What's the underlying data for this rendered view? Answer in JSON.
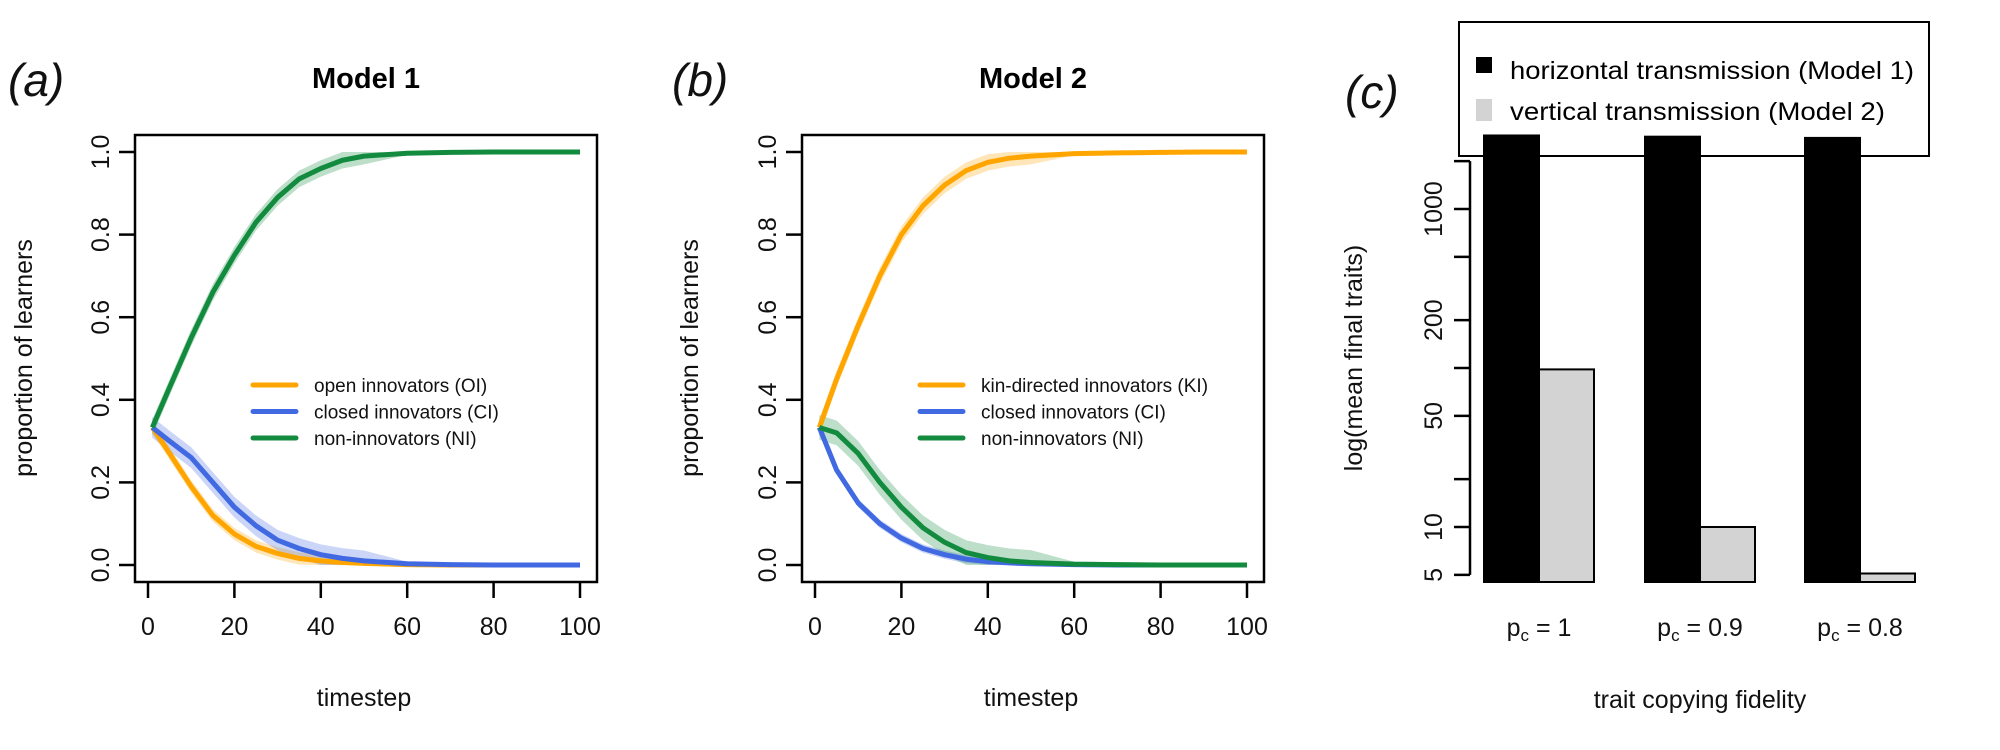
{
  "chart_data": [
    {
      "type": "line",
      "panel_tag": "(a)",
      "title": "Model 1",
      "xlabel": "timestep",
      "ylabel": "proportion of learners",
      "xlim": [
        0,
        100
      ],
      "ylim": [
        0,
        1
      ],
      "xticks": [
        0,
        20,
        40,
        60,
        80,
        100
      ],
      "yticks": [
        "0.0",
        "0.2",
        "0.4",
        "0.6",
        "0.8",
        "1.0"
      ],
      "legend_position": "center-right",
      "x": [
        1,
        5,
        10,
        15,
        20,
        25,
        30,
        35,
        40,
        45,
        50,
        60,
        70,
        80,
        90,
        100
      ],
      "series": [
        {
          "name": "open innovators (OI)",
          "color": "#FFA500",
          "band": 0.015,
          "values": [
            0.333,
            0.27,
            0.19,
            0.12,
            0.075,
            0.045,
            0.028,
            0.016,
            0.01,
            0.006,
            0.004,
            0.001,
            0.0,
            0.0,
            0.0,
            0.0
          ]
        },
        {
          "name": "closed innovators (CI)",
          "color": "#4169E1",
          "band": 0.025,
          "values": [
            0.333,
            0.3,
            0.26,
            0.2,
            0.14,
            0.095,
            0.06,
            0.04,
            0.025,
            0.016,
            0.01,
            0.003,
            0.001,
            0.0,
            0.0,
            0.0
          ]
        },
        {
          "name": "non-innovators (NI)",
          "color": "#138B3F",
          "band": 0.02,
          "values": [
            0.333,
            0.43,
            0.55,
            0.66,
            0.75,
            0.83,
            0.89,
            0.935,
            0.96,
            0.98,
            0.99,
            0.997,
            0.999,
            1.0,
            1.0,
            1.0
          ]
        }
      ]
    },
    {
      "type": "line",
      "panel_tag": "(b)",
      "title": "Model 2",
      "xlabel": "timestep",
      "ylabel": "proportion of learners",
      "xlim": [
        0,
        100
      ],
      "ylim": [
        0,
        1
      ],
      "xticks": [
        0,
        20,
        40,
        60,
        80,
        100
      ],
      "yticks": [
        "0.0",
        "0.2",
        "0.4",
        "0.6",
        "0.8",
        "1.0"
      ],
      "legend_position": "center-right",
      "x": [
        1,
        5,
        10,
        15,
        20,
        25,
        30,
        35,
        40,
        45,
        50,
        60,
        70,
        80,
        90,
        100
      ],
      "series": [
        {
          "name": "kin-directed innovators (KI)",
          "color": "#FFA500",
          "band": 0.02,
          "values": [
            0.333,
            0.45,
            0.58,
            0.7,
            0.8,
            0.87,
            0.92,
            0.955,
            0.975,
            0.985,
            0.99,
            0.996,
            0.998,
            0.999,
            1.0,
            1.0
          ]
        },
        {
          "name": "closed innovators (CI)",
          "color": "#4169E1",
          "band": 0.01,
          "values": [
            0.333,
            0.23,
            0.15,
            0.1,
            0.065,
            0.04,
            0.025,
            0.014,
            0.008,
            0.005,
            0.003,
            0.001,
            0.0,
            0.0,
            0.0,
            0.0
          ]
        },
        {
          "name": "non-innovators (NI)",
          "color": "#138B3F",
          "band": 0.03,
          "values": [
            0.333,
            0.32,
            0.27,
            0.2,
            0.14,
            0.09,
            0.055,
            0.03,
            0.018,
            0.01,
            0.006,
            0.002,
            0.001,
            0.0,
            0.0,
            0.0
          ]
        }
      ]
    },
    {
      "type": "bar",
      "panel_tag": "(c)",
      "xlabel": "trait copying fidelity",
      "ylabel": "log(mean final traits)",
      "yscale": "log",
      "ylim": [
        4.5,
        3000
      ],
      "yticks": [
        5,
        10,
        20,
        50,
        100,
        200,
        500,
        1000,
        2000
      ],
      "ytick_labels": [
        "5",
        "10",
        "",
        "50",
        "",
        "200",
        "",
        "1000",
        ""
      ],
      "categories": [
        {
          "main": "p",
          "sub": "c",
          "rest": " = 1"
        },
        {
          "main": "p",
          "sub": "c",
          "rest": " = 0.9"
        },
        {
          "main": "p",
          "sub": "c",
          "rest": " = 0.8"
        }
      ],
      "legend_position": "top",
      "series": [
        {
          "name": "horizontal transmission (Model 1)",
          "color": "#000000",
          "values": [
            2900,
            2850,
            2800
          ]
        },
        {
          "name": "vertical transmission (Model 2)",
          "color": "#D3D3D3",
          "values": [
            98,
            10,
            5.1
          ]
        }
      ]
    }
  ]
}
